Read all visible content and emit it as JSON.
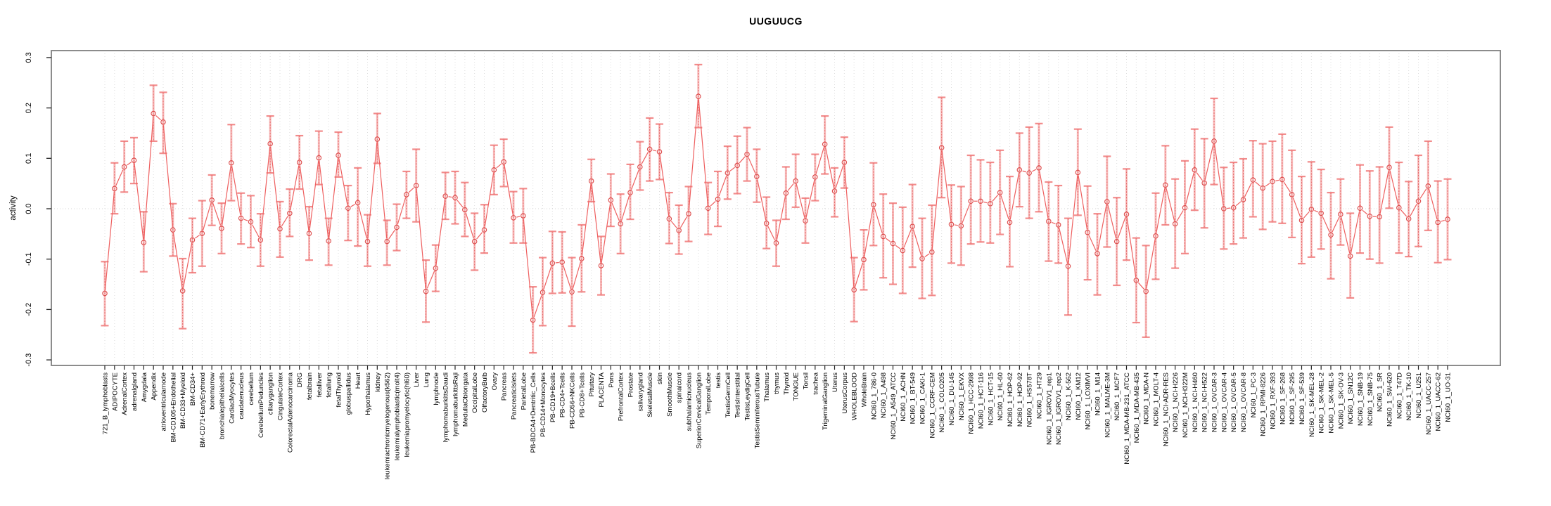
{
  "window": {
    "background": "#ffffff"
  },
  "chart_data": {
    "type": "line",
    "title": "UUGUUCG",
    "xlabel": "",
    "ylabel": "activity",
    "ylim": [
      -0.3,
      0.3
    ],
    "ytick_values": [
      0.3,
      0.2,
      0.1,
      0.0,
      -0.1,
      -0.2,
      -0.3
    ],
    "ytick_labels": [
      "0.3",
      "0.2",
      "0.1",
      "0.0",
      "-0.1",
      "-0.2",
      "-0.3"
    ],
    "grid": "vertical dotted gridline per category; dotted horizontal line at 0.0",
    "legend_position": "none",
    "point_style": "open-circle-with-error-bars",
    "colors": {
      "point": "#dc4848",
      "segment": "#ee5f5f",
      "error_band": "rgba(242,133,133,0.55)",
      "error_core": "#e25757",
      "error_cap": "rgba(240,120,120,0.85)",
      "grid": "#dcdcdc",
      "box": "#8c8c8c",
      "tick": "#222222",
      "text": "#000000"
    },
    "categories": [
      "721_B_lymphoblasts",
      "ADIPOCYTE",
      "AdrenalCortex",
      "adrenalgland",
      "Amygdala",
      "Appendix",
      "atrioventricularnode",
      "BM-CD105+Endothelial",
      "BM-CD33+Myeloid",
      "BM-CD34+",
      "BM-CD71+EarlyErythroid",
      "bonemarrow",
      "bronchialepithelialcells",
      "CardiacMyocytes",
      "caudatenucleus",
      "cerebellum",
      "CerebellumPeduncles",
      "ciliaryganglion",
      "CingulateCortex",
      "ColorectalAdenocarcinoma",
      "DRG",
      "fetalbrain",
      "fetalliver",
      "fetallung",
      "fetalThyroid",
      "globuspallidus",
      "Heart",
      "Hypothalamus",
      "kidney",
      "leukemiachronicmyelogenous(k562)",
      "leukemialymphoblastic(molt4)",
      "leukemiapromyelocytic(hl60)",
      "Liver",
      "Lung",
      "lymphnode",
      "lymphomaburkittsDaudi",
      "lymphomaburkittsRaji",
      "MedullaOblongata",
      "OccipitalLobe",
      "OlfactoryBulb",
      "Ovary",
      "Pancreas",
      "PancreaticIslets",
      "ParietalLobe",
      "PB-BDCA4+Dentritic_Cells",
      "PB-CD14+Monocytes",
      "PB-CD19+Bcells",
      "PB-CD4+Tcells",
      "PB-CD56+NKCells",
      "PB-CD8+Tcells",
      "Pituitary",
      "PLACENTA",
      "Pons",
      "PrefrontalCortex",
      "Prostate",
      "salivarygland",
      "SkeletalMuscle",
      "skin",
      "SmoothMuscle",
      "spinalcord",
      "subthalamicnucleus",
      "SuperiorCervicalGanglion",
      "TemporalLobe",
      "testis",
      "TestisGermCell",
      "TestisInterstitial",
      "TestisLeydigCell",
      "TestisSeminiferousTubule",
      "Thalamus",
      "thymus",
      "Thyroid",
      "TONGUE",
      "Tonsil",
      "trachea",
      "TrigeminalGanglion",
      "Uterus",
      "UterusCorpus",
      "WHOLEBLOOD",
      "WholeBrain",
      "NCI60_1_786-0",
      "NCI60_1_A498",
      "NCI60_1_A549_ATCC",
      "NCI60_1_ACHN",
      "NCI60_1_BT-549",
      "NCI60_1_CAKI-1",
      "NCI60_1_CCRF-CEM",
      "NCI60_1_COLO205",
      "NCI60_1_DU-145",
      "NCI60_1_EKVX",
      "NCI60_1_HCC-2998",
      "NCI60_1_HCT-116",
      "NCI60_1_HCT-15",
      "NCI60_1_HL-60",
      "NCI60_1_HOP-62",
      "NCI60_1_HOP-92",
      "NCI60_1_HS578T",
      "NCI60_1_HT29",
      "NCI60_1_IGROV1_rep1",
      "NCI60_1_IGROV1_rep2",
      "NCI60_1_K-562",
      "NCI60_1_KM12",
      "NCI60_1_LOXIMVI",
      "NCI60_1_M14",
      "NCI60_1_MALME-3M",
      "NCI60_1_MCF7",
      "NCI60_1_MDA-MB-231_ATCC",
      "NCI60_1_MDA-MB-435",
      "NCI60_1_MDA-N",
      "NCI60_1_MOLT-4",
      "NCI60_1_NCI-ADR-RES",
      "NCI60_1_NCI-H226",
      "NCI60_1_NCI-H322M",
      "NCI60_1_NCI-H460",
      "NCI60_1_NCI-H522",
      "NCI60_1_OVCAR-3",
      "NCI60_1_OVCAR-4",
      "NCI60_1_OVCAR-5",
      "NCI60_1_OVCAR-8",
      "NCI60_1_PC-3",
      "NCI60_1_RPMI-8226",
      "NCI60_1_RXF-393",
      "NCI60_1_SF-268",
      "NCI60_1_SF-295",
      "NCI60_1_SF-539",
      "NCI60_1_SK-MEL-28",
      "NCI60_1_SK-MEL-2",
      "NCI60_1_SK-MEL-5",
      "NCI60_1_SK-OV-3",
      "NCI60_1_SN12C",
      "NCI60_1_SNB-19",
      "NCI60_1_SNB-75",
      "NCI60_1_SR",
      "NCI60_1_SW-620",
      "NCI60_1_T47D",
      "NCI60_1_TK-10",
      "NCI60_1_U251",
      "NCI60_1_UACC-257",
      "NCI60_1_UACC-62",
      "NCI60_1_UO-31"
    ],
    "series": [
      {
        "name": "activity",
        "values": [
          -0.168,
          0.04,
          0.083,
          0.096,
          -0.067,
          0.189,
          0.172,
          -0.042,
          -0.163,
          -0.062,
          -0.049,
          0.017,
          -0.039,
          0.091,
          -0.019,
          -0.026,
          -0.062,
          0.129,
          -0.04,
          -0.009,
          0.092,
          -0.049,
          0.101,
          -0.064,
          0.106,
          0.001,
          0.012,
          -0.065,
          0.138,
          -0.065,
          -0.037,
          0.028,
          0.046,
          -0.164,
          -0.118,
          0.025,
          0.022,
          -0.002,
          -0.065,
          -0.042,
          0.077,
          0.093,
          -0.018,
          -0.014,
          -0.221,
          -0.166,
          -0.108,
          -0.106,
          -0.165,
          -0.099,
          0.055,
          -0.113,
          0.017,
          -0.03,
          0.032,
          0.083,
          0.118,
          0.113,
          -0.02,
          -0.043,
          -0.01,
          0.223,
          0.001,
          0.019,
          0.071,
          0.086,
          0.108,
          0.064,
          -0.029,
          -0.068,
          0.031,
          0.055,
          -0.024,
          0.063,
          0.128,
          0.035,
          0.092,
          -0.161,
          -0.101,
          0.008,
          -0.055,
          -0.069,
          -0.083,
          -0.035,
          -0.099,
          -0.086,
          0.121,
          -0.031,
          -0.034,
          0.015,
          0.015,
          0.01,
          0.032,
          -0.027,
          0.077,
          0.071,
          0.081,
          -0.025,
          -0.032,
          -0.114,
          0.072,
          -0.047,
          -0.089,
          0.014,
          -0.065,
          -0.011,
          -0.142,
          -0.164,
          -0.054,
          0.047,
          -0.03,
          0.002,
          0.077,
          0.051,
          0.134,
          0.0,
          0.002,
          0.018,
          0.057,
          0.041,
          0.054,
          0.058,
          0.028,
          -0.023,
          -0.001,
          -0.009,
          -0.052,
          -0.011,
          -0.094,
          0.001,
          -0.015,
          -0.016,
          0.082,
          0.002,
          -0.02,
          0.015,
          0.045,
          -0.027,
          -0.021
        ],
        "err_lo": [
          -0.232,
          -0.01,
          0.033,
          0.05,
          -0.125,
          0.134,
          0.11,
          -0.094,
          -0.238,
          -0.127,
          -0.114,
          -0.033,
          -0.089,
          0.016,
          -0.07,
          -0.077,
          -0.114,
          0.071,
          -0.096,
          -0.055,
          0.039,
          -0.102,
          0.048,
          -0.112,
          0.063,
          -0.063,
          -0.074,
          -0.114,
          0.09,
          -0.112,
          -0.083,
          -0.019,
          -0.026,
          -0.225,
          -0.164,
          -0.021,
          -0.03,
          -0.055,
          -0.122,
          -0.088,
          0.028,
          0.044,
          -0.068,
          -0.068,
          -0.286,
          -0.232,
          -0.168,
          -0.167,
          -0.233,
          -0.165,
          0.014,
          -0.171,
          -0.035,
          -0.089,
          -0.021,
          0.037,
          0.055,
          0.058,
          -0.069,
          -0.09,
          -0.065,
          0.161,
          -0.051,
          -0.035,
          0.019,
          0.03,
          0.055,
          0.013,
          -0.079,
          -0.114,
          -0.021,
          0.003,
          -0.068,
          0.016,
          0.069,
          -0.016,
          0.041,
          -0.224,
          -0.161,
          -0.073,
          -0.137,
          -0.15,
          -0.168,
          -0.116,
          -0.178,
          -0.172,
          0.022,
          -0.108,
          -0.112,
          -0.07,
          -0.066,
          -0.068,
          -0.051,
          -0.115,
          0.004,
          -0.019,
          -0.006,
          -0.104,
          -0.108,
          -0.211,
          -0.013,
          -0.141,
          -0.171,
          -0.076,
          -0.152,
          -0.102,
          -0.226,
          -0.255,
          -0.14,
          -0.032,
          -0.118,
          -0.089,
          -0.003,
          -0.038,
          0.048,
          -0.08,
          -0.07,
          -0.058,
          -0.016,
          -0.041,
          -0.026,
          -0.029,
          -0.057,
          -0.109,
          -0.096,
          -0.08,
          -0.139,
          -0.072,
          -0.177,
          -0.088,
          -0.1,
          -0.108,
          0.001,
          -0.088,
          -0.095,
          -0.075,
          -0.043,
          -0.107,
          -0.101
        ],
        "err_hi": [
          -0.105,
          0.091,
          0.134,
          0.141,
          -0.006,
          0.245,
          0.231,
          0.01,
          -0.099,
          -0.019,
          0.016,
          0.067,
          0.011,
          0.167,
          0.031,
          0.026,
          -0.01,
          0.184,
          0.014,
          0.039,
          0.145,
          0.004,
          0.154,
          -0.019,
          0.152,
          0.046,
          0.081,
          -0.012,
          0.189,
          -0.023,
          0.009,
          0.074,
          0.118,
          -0.102,
          -0.072,
          0.072,
          0.074,
          0.052,
          -0.009,
          0.008,
          0.126,
          0.138,
          0.034,
          0.04,
          -0.155,
          -0.097,
          -0.045,
          -0.046,
          -0.097,
          -0.032,
          0.098,
          -0.055,
          0.069,
          0.029,
          0.088,
          0.133,
          0.18,
          0.168,
          0.032,
          0.007,
          0.044,
          0.286,
          0.052,
          0.074,
          0.124,
          0.144,
          0.161,
          0.118,
          0.023,
          -0.023,
          0.083,
          0.108,
          0.021,
          0.108,
          0.184,
          0.081,
          0.142,
          -0.097,
          -0.042,
          0.091,
          0.029,
          0.011,
          0.003,
          0.048,
          -0.019,
          0.007,
          0.221,
          0.047,
          0.044,
          0.106,
          0.097,
          0.092,
          0.116,
          0.064,
          0.15,
          0.162,
          0.169,
          0.053,
          0.046,
          -0.019,
          0.158,
          0.045,
          -0.01,
          0.104,
          0.022,
          0.079,
          -0.058,
          -0.073,
          0.031,
          0.125,
          0.059,
          0.095,
          0.158,
          0.139,
          0.219,
          0.082,
          0.092,
          0.099,
          0.135,
          0.129,
          0.134,
          0.148,
          0.116,
          0.064,
          0.093,
          0.078,
          0.032,
          0.059,
          -0.009,
          0.087,
          0.075,
          0.083,
          0.162,
          0.092,
          0.054,
          0.106,
          0.134,
          0.055,
          0.059
        ]
      }
    ]
  }
}
